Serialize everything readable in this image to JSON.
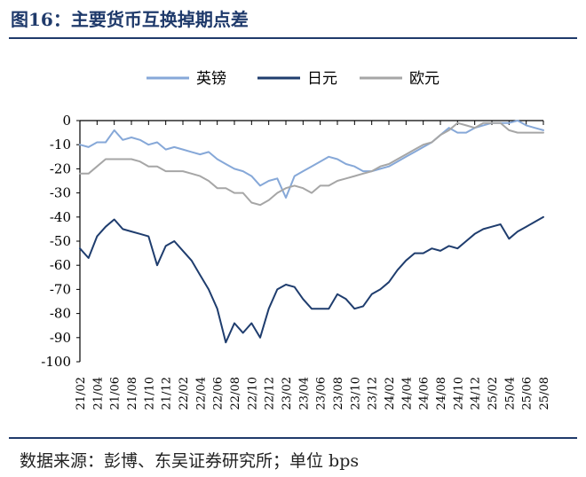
{
  "header": {
    "title": "图16：主要货币互换掉期点差"
  },
  "footer": {
    "source": "数据来源：彭博、东吴证券研究所；单位 bps"
  },
  "chart_data": {
    "type": "line",
    "title": "",
    "xlabel": "",
    "ylabel": "",
    "ylim": [
      -100,
      0
    ],
    "yticks": [
      0,
      -10,
      -20,
      -30,
      -40,
      -50,
      -60,
      -70,
      -80,
      -90,
      -100
    ],
    "xticks": [
      "21/02",
      "21/04",
      "21/06",
      "21/08",
      "21/10",
      "21/12",
      "22/02",
      "22/04",
      "22/06",
      "22/08",
      "22/10",
      "22/12",
      "23/02",
      "23/04",
      "23/06",
      "23/08",
      "23/10",
      "23/12",
      "24/02",
      "24/04",
      "24/06",
      "24/08",
      "24/10",
      "24/12",
      "25/02",
      "25/04",
      "25/06",
      "25/08"
    ],
    "legend_position": "top",
    "grid": false,
    "series": [
      {
        "name": "英镑",
        "color": "#86a8d8",
        "x": [
          0,
          0.5,
          1,
          1.5,
          2,
          2.5,
          3,
          3.5,
          4,
          4.5,
          5,
          5.5,
          6,
          6.5,
          7,
          7.5,
          8,
          8.5,
          9,
          9.5,
          10,
          10.5,
          11,
          11.5,
          12,
          12.5,
          13,
          13.5,
          14,
          14.5,
          15,
          15.5,
          16,
          16.5,
          17,
          17.5,
          18,
          18.5,
          19,
          19.5,
          20,
          20.5,
          21,
          21.5,
          22,
          22.5,
          23,
          23.5,
          24,
          24.5,
          25,
          25.5,
          26,
          26.5,
          27
        ],
        "values": [
          -10,
          -11,
          -9,
          -9,
          -4,
          -8,
          -7,
          -8,
          -10,
          -9,
          -12,
          -11,
          -12,
          -13,
          -14,
          -13,
          -16,
          -18,
          -20,
          -21,
          -23,
          -27,
          -25,
          -24,
          -32,
          -23,
          -21,
          -19,
          -17,
          -15,
          -16,
          -18,
          -19,
          -21,
          -21,
          -20,
          -19,
          -17,
          -15,
          -13,
          -11,
          -9,
          -6,
          -3,
          -5,
          -5,
          -3,
          -2,
          -1,
          -1,
          -1,
          0,
          -2,
          -3,
          -4
        ]
      },
      {
        "name": "日元",
        "color": "#1f3d6e",
        "x": [
          0,
          0.5,
          1,
          1.5,
          2,
          2.5,
          3,
          3.5,
          4,
          4.5,
          5,
          5.5,
          6,
          6.5,
          7,
          7.5,
          8,
          8.5,
          9,
          9.5,
          10,
          10.5,
          11,
          11.5,
          12,
          12.5,
          13,
          13.5,
          14,
          14.5,
          15,
          15.5,
          16,
          16.5,
          17,
          17.5,
          18,
          18.5,
          19,
          19.5,
          20,
          20.5,
          21,
          21.5,
          22,
          22.5,
          23,
          23.5,
          24,
          24.5,
          25,
          25.5,
          26,
          26.5,
          27
        ],
        "values": [
          -53,
          -57,
          -48,
          -44,
          -41,
          -45,
          -46,
          -47,
          -48,
          -60,
          -52,
          -50,
          -54,
          -58,
          -64,
          -70,
          -78,
          -92,
          -84,
          -88,
          -84,
          -90,
          -78,
          -70,
          -68,
          -69,
          -74,
          -78,
          -78,
          -78,
          -72,
          -74,
          -78,
          -77,
          -72,
          -70,
          -67,
          -62,
          -58,
          -55,
          -55,
          -53,
          -54,
          -52,
          -53,
          -50,
          -47,
          -45,
          -44,
          -43,
          -49,
          -46,
          -44,
          -42,
          -40
        ]
      },
      {
        "name": "欧元",
        "color": "#a6a6a6",
        "x": [
          0,
          0.5,
          1,
          1.5,
          2,
          2.5,
          3,
          3.5,
          4,
          4.5,
          5,
          5.5,
          6,
          6.5,
          7,
          7.5,
          8,
          8.5,
          9,
          9.5,
          10,
          10.5,
          11,
          11.5,
          12,
          12.5,
          13,
          13.5,
          14,
          14.5,
          15,
          15.5,
          16,
          16.5,
          17,
          17.5,
          18,
          18.5,
          19,
          19.5,
          20,
          20.5,
          21,
          21.5,
          22,
          22.5,
          23,
          23.5,
          24,
          24.5,
          25,
          25.5,
          26,
          26.5,
          27
        ],
        "values": [
          -22,
          -22,
          -19,
          -16,
          -16,
          -16,
          -16,
          -17,
          -19,
          -19,
          -21,
          -21,
          -21,
          -22,
          -23,
          -25,
          -28,
          -28,
          -30,
          -30,
          -34,
          -35,
          -33,
          -30,
          -28,
          -27,
          -28,
          -30,
          -27,
          -27,
          -25,
          -24,
          -23,
          -22,
          -21,
          -19,
          -18,
          -16,
          -14,
          -12,
          -10,
          -9,
          -6,
          -4,
          -1,
          -2,
          -3,
          -1,
          -1,
          -1,
          -4,
          -5,
          -5,
          -5,
          -5
        ]
      }
    ]
  }
}
